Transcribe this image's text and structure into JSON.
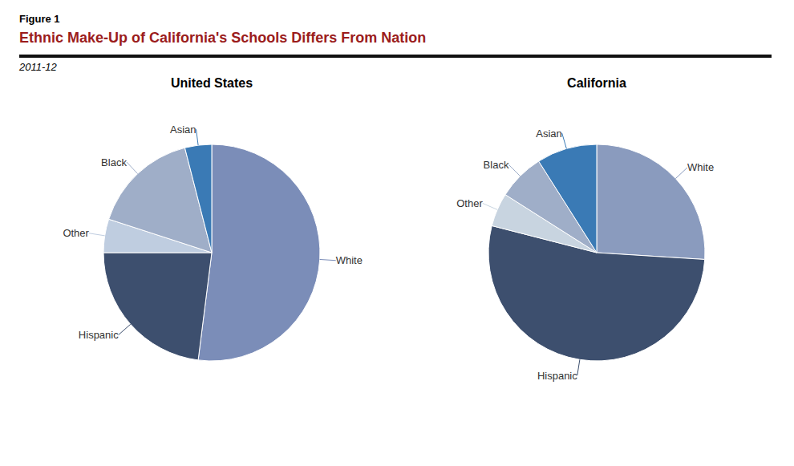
{
  "title": "Ethnic Make-Up of California's Schools Differs From Nation",
  "color": "#9B1C1C",
  "subtitle": "2011-12",
  "annotations": [
    "Figure 1"
  ],
  "chart_data": [
    {
      "type": "pie",
      "title": "United States",
      "categories": [
        "White",
        "Hispanic",
        "Other",
        "Black",
        "Asian"
      ],
      "values": [
        52,
        23,
        5,
        16,
        4
      ],
      "colors": [
        "#7B8DB8",
        "#3D4F6E",
        "#BFCDE0",
        "#9FAEC8",
        "#3A7AB5"
      ]
    },
    {
      "type": "pie",
      "title": "California",
      "categories": [
        "White",
        "Hispanic",
        "Other",
        "Black",
        "Asian"
      ],
      "values": [
        26,
        53,
        5,
        7,
        9
      ],
      "colors": [
        "#8A9BBE",
        "#3D4F6E",
        "#C8D4E0",
        "#9FAEC8",
        "#3A7AB5"
      ]
    }
  ]
}
